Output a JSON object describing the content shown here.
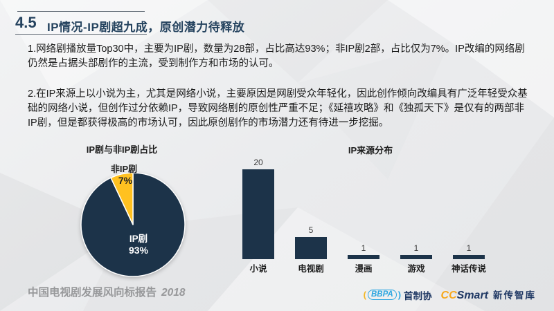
{
  "slide": {
    "section_number": "4.5",
    "title": "IP情况-IP剧超九成，原创潜力待释放",
    "paragraphs": [
      "1.网络剧播放量Top30中，主要为IP剧，数量为28部，占比高达93%；非IP剧2部，占比仅为7%。IP改编的网络剧仍然是占据头部剧作的主流，受到制作方和市场的认可。",
      "2.在IP来源上以小说为主，尤其是网络小说，主要原因是网剧受众年轻化，因此创作倾向改编具有广泛年轻受众基础的网络小说，但创作过分依赖IP，导致网络剧的原创性严重不足；《延禧攻略》和《独孤天下》是仅有的两部非IP剧，但是都获得极高的市场认可，因此原创剧作的市场潜力还有待进一步挖掘。"
    ]
  },
  "chart_data": [
    {
      "type": "pie",
      "title": "IP剧与非IP剧占比",
      "categories": [
        "IP剧",
        "非IP剧"
      ],
      "values": [
        93,
        7
      ],
      "value_labels": [
        "93%",
        "7%"
      ],
      "colors": [
        "#1c3349",
        "#ffc120"
      ],
      "start_angle_deg": 0,
      "direction": "clockwise",
      "unit": "%"
    },
    {
      "type": "bar",
      "title": "IP来源分布",
      "categories": [
        "小说",
        "电视剧",
        "漫画",
        "游戏",
        "神话传说"
      ],
      "values": [
        20,
        5,
        1,
        1,
        1
      ],
      "bar_color": "#1c3349",
      "ylim": [
        0,
        20
      ],
      "data_labels": true,
      "grid": false,
      "axis_lines": false
    }
  ],
  "footer": {
    "report_title": "中国电视剧发展风向标报告",
    "year": "2018",
    "logos": {
      "bbpa_abbr": "BBPA",
      "bbpa_org": "首制协",
      "cc_part1": "CC",
      "cc_part2": "Smart",
      "cc_org": "新传智库"
    }
  },
  "colors": {
    "title_navy": "#24425e",
    "chart_navy": "#1c3349",
    "accent_yellow": "#ffc120",
    "footer_gray": "#97989a",
    "bbpa_blue": "#2ca6e0",
    "cc_orange": "#f7a81b",
    "logo_navy": "#1f3864"
  }
}
